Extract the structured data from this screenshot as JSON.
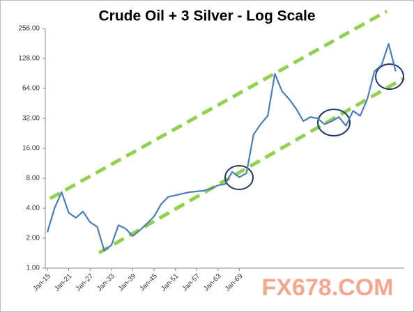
{
  "chart_data": {
    "type": "line",
    "title": "Crude Oil + 3 Silver - Log Scale",
    "categories": [
      "Jan-15",
      null,
      null,
      "Jan-21",
      null,
      null,
      "Jan-27",
      null,
      null,
      "Jan-33",
      null,
      null,
      "Jan-39",
      null,
      null,
      "Jan-45",
      null,
      null,
      "Jan-51",
      null,
      null,
      "Jan-57",
      null,
      null,
      "Jan-63",
      null,
      null,
      "Jan-69",
      null,
      null,
      null,
      null,
      null,
      null,
      null,
      null,
      null,
      null,
      null,
      null,
      null,
      null,
      null,
      null,
      null,
      null,
      null,
      null,
      null,
      null
    ],
    "series": [
      {
        "name": "Crude Oil + 3 Silver",
        "color": "#4a7ebb",
        "values": [
          2.3,
          4.0,
          5.8,
          3.6,
          3.2,
          3.7,
          2.9,
          2.6,
          1.5,
          1.7,
          2.7,
          2.5,
          2.1,
          2.4,
          2.8,
          3.3,
          4.4,
          5.2,
          5.4,
          5.6,
          5.8,
          5.9,
          6.0,
          6.3,
          6.8,
          7.0,
          9.3,
          8.2,
          9.0,
          22,
          28,
          34,
          90,
          60,
          50,
          40,
          30,
          33,
          32,
          28,
          30,
          33,
          27,
          38,
          34,
          50,
          95,
          110,
          180,
          95
        ]
      }
    ],
    "log_scale": true,
    "ylim": [
      1,
      256
    ],
    "yticks": [
      {
        "value": 1,
        "label": "1.00"
      },
      {
        "value": 2,
        "label": "2.00"
      },
      {
        "value": 4,
        "label": "4.00"
      },
      {
        "value": 8,
        "label": "8.00"
      },
      {
        "value": 16,
        "label": "16.00"
      },
      {
        "value": 32,
        "label": "32.00"
      },
      {
        "value": 64,
        "label": "64.00"
      },
      {
        "value": 128,
        "label": "128.00"
      },
      {
        "value": 256,
        "label": "256.00"
      }
    ],
    "grid": false,
    "watermark": "FX678.COM"
  }
}
